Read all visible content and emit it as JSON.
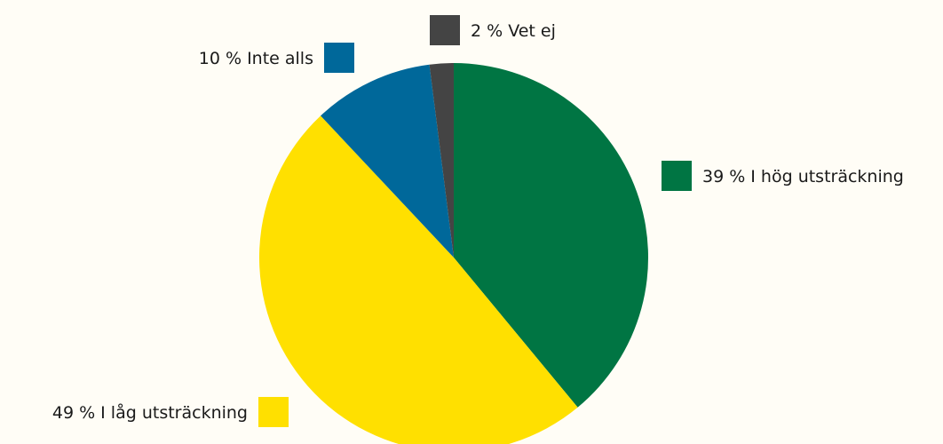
{
  "chart_data": {
    "type": "pie",
    "categories": [
      "I hög utsträckning",
      "I låg utsträckning",
      "Inte alls",
      "Vet ej"
    ],
    "values": [
      39,
      49,
      10,
      2
    ],
    "value_labels": [
      "39 %",
      "49 %",
      "10 %",
      "2 %"
    ],
    "colors": [
      "#007543",
      "#ffe000",
      "#00689a",
      "#444444"
    ]
  }
}
